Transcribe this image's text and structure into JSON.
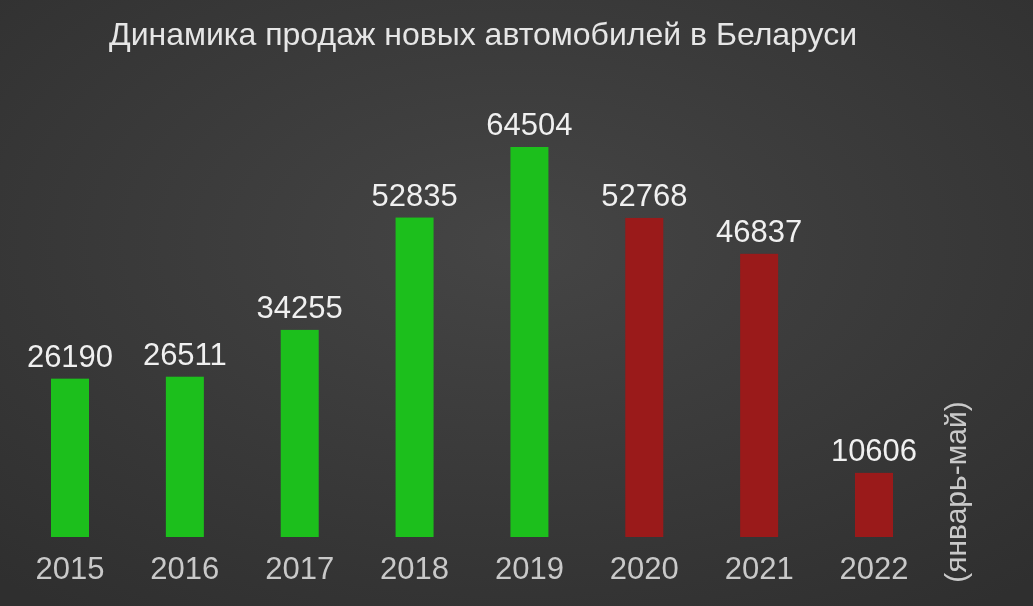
{
  "chart_data": {
    "type": "bar",
    "title": "Динамика продаж новых автомобилей в Беларуси",
    "categories": [
      "2015",
      "2016",
      "2017",
      "2018",
      "2019",
      "2020",
      "2021",
      "2022"
    ],
    "values": [
      26190,
      26511,
      34255,
      52835,
      64504,
      52768,
      46837,
      10606
    ],
    "colors": [
      "#1cbf1c",
      "#1cbf1c",
      "#1cbf1c",
      "#1cbf1c",
      "#1cbf1c",
      "#9a1a1a",
      "#9a1a1a",
      "#9a1a1a"
    ],
    "data_labels": true,
    "annotations": [
      "(январь-май)"
    ]
  }
}
